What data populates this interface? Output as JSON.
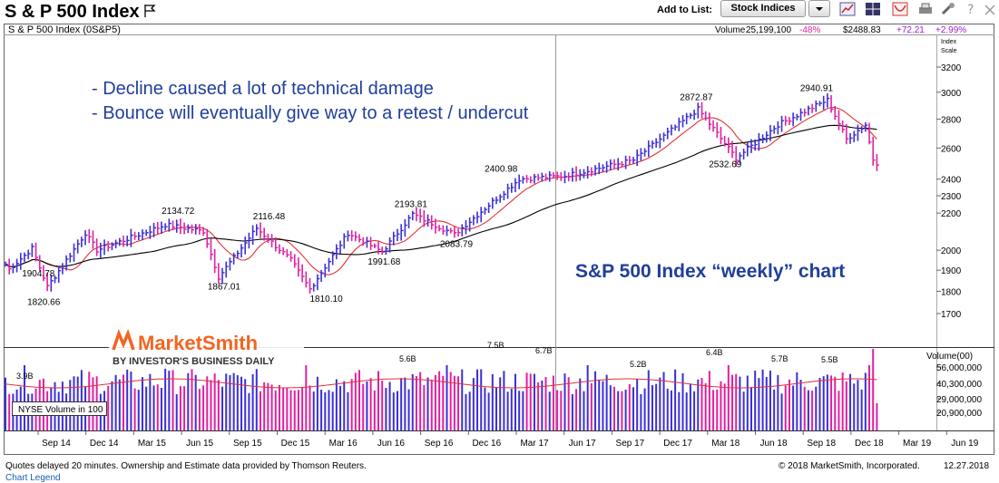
{
  "header": {
    "title": "S & P 500 Index",
    "add_to_list_label": "Add to List:",
    "list_selected": "Stock Indices"
  },
  "toolbar_icons": [
    "line-chart-icon",
    "grid-icon",
    "pattern-icon",
    "print-icon",
    "tools-icon",
    "help-icon",
    "close-icon"
  ],
  "info_bar": {
    "symbol": "S & P 500 Index   (0S&P5)",
    "volume_label": "Volume",
    "volume_value": "25,199,100",
    "volume_pct": "-48%",
    "price": "$2488.83",
    "change": "+72.21",
    "change_pct": "+2.99%",
    "scale_label_1": "Index",
    "scale_label_2": "Scale"
  },
  "colors": {
    "up_bar": "#3b2fd6",
    "down_bar": "#e020a0",
    "ma_short": "#e53030",
    "ma_long": "#000000",
    "annotation_blue": "#1f3f9a",
    "change_pos": "#9b1fd0",
    "change_neg": "#e020a0"
  },
  "annotations": {
    "bullet1": "- Decline caused a lot of technical damage",
    "bullet2": "- Bounce will eventually give way to a retest / undercut",
    "chart_label": "S&P 500 Index “weekly” chart"
  },
  "logo": {
    "name": "MarketSmith",
    "tagline": "BY INVESTOR'S BUSINESS DAILY"
  },
  "chart_data": {
    "type": "bar",
    "title": "S & P 500 Index",
    "price_axis": {
      "scale": "log",
      "ticks": [
        1700,
        1800,
        1900,
        2000,
        2200,
        2300,
        2400,
        2600,
        2800,
        3000,
        3200
      ],
      "ylim": [
        1600,
        3400
      ]
    },
    "volume_axis": {
      "label": "Volume(00)",
      "ticks": [
        "56,000,000",
        "40,300,000",
        "29,000,000",
        "20,900,000"
      ]
    },
    "x_ticks": [
      "Sep 14",
      "Dec 14",
      "Mar 15",
      "Jun 15",
      "Sep 15",
      "Dec 15",
      "Mar 16",
      "Jun 16",
      "Sep 16",
      "Dec 16",
      "Mar 17",
      "Jun 17",
      "Sep 17",
      "Dec 17",
      "Mar 18",
      "Jun 18",
      "Sep 18",
      "Dec 18",
      "Mar 19",
      "Jun 19"
    ],
    "price_key_points": [
      {
        "date": "2014-08-01",
        "close": 1930
      },
      {
        "date": "2014-08-08",
        "close": 1904.78
      },
      {
        "date": "2014-09-19",
        "close": 2010
      },
      {
        "date": "2014-10-17",
        "close": 1820.66
      },
      {
        "date": "2014-12-26",
        "close": 2090
      },
      {
        "date": "2015-01-16",
        "close": 2000
      },
      {
        "date": "2015-05-22",
        "close": 2134.72
      },
      {
        "date": "2015-07-31",
        "close": 2100
      },
      {
        "date": "2015-08-28",
        "close": 1867.01
      },
      {
        "date": "2015-11-06",
        "close": 2116.48
      },
      {
        "date": "2016-01-08",
        "close": 1950
      },
      {
        "date": "2016-02-12",
        "close": 1810.1
      },
      {
        "date": "2016-04-22",
        "close": 2090
      },
      {
        "date": "2016-06-24",
        "close": 1991.68
      },
      {
        "date": "2016-08-19",
        "close": 2193.81
      },
      {
        "date": "2016-11-04",
        "close": 2083.79
      },
      {
        "date": "2017-03-03",
        "close": 2400.98
      },
      {
        "date": "2017-05-26",
        "close": 2420
      },
      {
        "date": "2017-09-29",
        "close": 2520
      },
      {
        "date": "2018-01-26",
        "close": 2872.87
      },
      {
        "date": "2018-04-06",
        "close": 2532.69
      },
      {
        "date": "2018-06-22",
        "close": 2760
      },
      {
        "date": "2018-09-21",
        "close": 2940.91
      },
      {
        "date": "2018-10-26",
        "close": 2660
      },
      {
        "date": "2018-11-30",
        "close": 2760
      },
      {
        "date": "2018-12-21",
        "close": 2416
      },
      {
        "date": "2018-12-27",
        "close": 2488.83
      }
    ],
    "price_labels": [
      {
        "text": "1904.78",
        "value": 1904.78
      },
      {
        "text": "1820.66",
        "value": 1820.66
      },
      {
        "text": "2134.72",
        "value": 2134.72
      },
      {
        "text": "1867.01",
        "value": 1867.01
      },
      {
        "text": "2116.48",
        "value": 2116.48
      },
      {
        "text": "1810.10",
        "value": 1810.1
      },
      {
        "text": "1991.68",
        "value": 1991.68
      },
      {
        "text": "2193.81",
        "value": 2193.81
      },
      {
        "text": "2083.79",
        "value": 2083.79
      },
      {
        "text": "2400.98",
        "value": 2400.98
      },
      {
        "text": "2872.87",
        "value": 2872.87
      },
      {
        "text": "2532.69",
        "value": 2532.69
      },
      {
        "text": "2940.91",
        "value": 2940.91
      }
    ],
    "volume_labels": [
      "3.9B",
      "5.6B",
      "7.5B",
      "6.7B",
      "5.2B",
      "6.4B",
      "5.7B",
      "5.5B"
    ],
    "volume_legend": "NYSE Volume in 100"
  },
  "footer": {
    "left": "Quotes delayed 20 minutes. Ownership and Estimate data provided by Thomson Reuters.",
    "right": "© 2018 MarketSmith, Incorporated.",
    "date": "12.27.2018",
    "legend_link": "Chart Legend"
  }
}
